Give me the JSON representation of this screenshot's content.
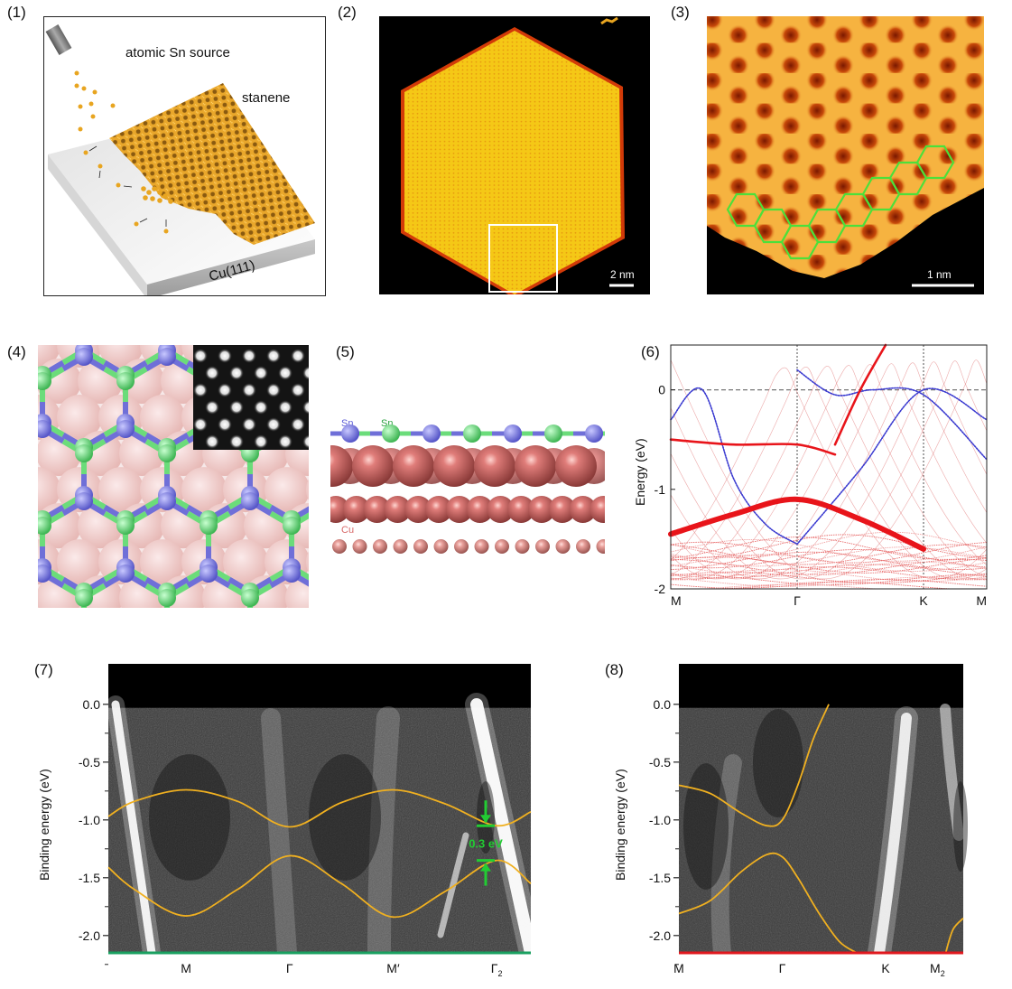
{
  "panels": {
    "p1": {
      "label": "(1)",
      "source_label": "atomic Sn source",
      "film_label": "stanene",
      "substrate_label": "Cu(111)"
    },
    "p2": {
      "label": "(2)",
      "scalebar": "2 nm"
    },
    "p3": {
      "label": "(3)",
      "scalebar": "1 nm"
    },
    "p4": {
      "label": "(4)"
    },
    "p5": {
      "label": "(5)",
      "atom_labels": [
        "Sn",
        "Sn",
        "Cu"
      ]
    }
  },
  "colors": {
    "sn_blue": "#6f6fd8",
    "sn_green": "#6bdc7a",
    "cu_pink": "#e8a9a6",
    "cu_red": "#d86a6a",
    "band_red": "#e8141a",
    "band_blue": "#3a3ad0",
    "fit_orange": "#f0b020",
    "gap_green": "#22cc33",
    "path7_green": "#1aa060",
    "path8_red": "#e0181e"
  },
  "chart_data": [
    {
      "id": "panel6",
      "label": "(6)",
      "type": "line",
      "title": "",
      "xlabel": "",
      "ylabel": "Energy (eV)",
      "ylim": [
        -2,
        0.45
      ],
      "yticks": [
        0,
        -1,
        -2
      ],
      "ytick_labels": [
        "0",
        "-1",
        "-2"
      ],
      "xticks": [
        "M",
        "Γ",
        "K",
        "M"
      ],
      "x_positions": [
        0,
        1,
        2,
        2.5
      ],
      "fermi_level": 0,
      "series": [
        {
          "name": "Sn-blue band A",
          "color": "blue",
          "x": [
            0,
            0.25,
            0.5,
            0.75,
            1.0
          ],
          "y": [
            -0.3,
            0.0,
            -0.9,
            -1.35,
            -1.55
          ]
        },
        {
          "name": "Sn-blue band B",
          "color": "blue",
          "x": [
            1.0,
            1.3,
            1.6,
            2.0,
            2.5
          ],
          "y": [
            0.2,
            -0.05,
            0.0,
            -0.05,
            -0.7
          ]
        },
        {
          "name": "Sn-blue band C",
          "color": "blue",
          "x": [
            1.0,
            1.5,
            2.0,
            2.5
          ],
          "y": [
            -1.55,
            -0.8,
            0.0,
            -0.3
          ]
        },
        {
          "name": "Cu-red flat band",
          "color": "red",
          "x": [
            0,
            0.5,
            1.0,
            1.5,
            2.0
          ],
          "y": [
            -1.45,
            -1.25,
            -1.1,
            -1.3,
            -1.6
          ]
        },
        {
          "name": "Cu-red band upper",
          "color": "red",
          "x": [
            0,
            0.5,
            1.0,
            1.3
          ],
          "y": [
            -0.5,
            -0.55,
            -0.55,
            -0.65
          ]
        },
        {
          "name": "Cu-red steep band",
          "color": "red",
          "x": [
            1.3,
            1.5,
            1.7
          ],
          "y": [
            -0.55,
            0.0,
            0.45
          ]
        }
      ]
    },
    {
      "id": "panel7",
      "label": "(7)",
      "type": "line",
      "title": "",
      "ylabel": "Binding energy (eV)",
      "ylim": [
        -2.15,
        0.35
      ],
      "yticks": [
        0.0,
        -0.5,
        -1.0,
        -1.5,
        -2.0
      ],
      "ytick_labels": [
        "0.0",
        "-0.5",
        "-1.0",
        "-1.5",
        "-2.0"
      ],
      "xticks": [
        "M",
        "Γ",
        "M′",
        "Γ2"
      ],
      "x_positions": [
        1,
        2,
        3,
        4
      ],
      "xlim": [
        0.25,
        4.33
      ],
      "annotation": "0.3 eV",
      "gap_ev": 0.3,
      "series": [
        {
          "name": "upper band fit",
          "x": [
            0.25,
            0.5,
            1.0,
            1.5,
            2.0,
            2.5,
            3.0,
            3.5,
            4.0,
            4.33
          ],
          "y": [
            -0.97,
            -0.84,
            -0.74,
            -0.84,
            -1.06,
            -0.85,
            -0.74,
            -0.86,
            -1.05,
            -0.93
          ]
        },
        {
          "name": "lower band fit",
          "x": [
            0.25,
            0.5,
            1.0,
            1.5,
            2.0,
            2.5,
            3.0,
            3.5,
            4.0,
            4.33
          ],
          "y": [
            -1.41,
            -1.6,
            -1.83,
            -1.6,
            -1.31,
            -1.55,
            -1.84,
            -1.62,
            -1.35,
            -1.55
          ]
        }
      ]
    },
    {
      "id": "panel8",
      "label": "(8)",
      "type": "line",
      "title": "",
      "ylabel": "Binding energy (eV)",
      "ylim": [
        -2.15,
        0.35
      ],
      "yticks": [
        0.0,
        -0.5,
        -1.0,
        -1.5,
        -2.0
      ],
      "ytick_labels": [
        "0.0",
        "-0.5",
        "-1.0",
        "-1.5",
        "-2.0"
      ],
      "xticks": [
        "M",
        "Γ",
        "K",
        "M2"
      ],
      "x_positions": [
        0,
        1,
        2,
        2.5
      ],
      "xlim": [
        0,
        2.75
      ],
      "series": [
        {
          "name": "upper band fit",
          "x": [
            0,
            0.3,
            0.6,
            0.85,
            1.0,
            1.15,
            1.3,
            1.45
          ],
          "y": [
            -0.7,
            -0.77,
            -0.94,
            -1.05,
            -1.0,
            -0.7,
            -0.3,
            0.0
          ]
        },
        {
          "name": "lower band fit",
          "x": [
            0,
            0.3,
            0.6,
            0.85,
            1.0,
            1.15,
            1.35,
            1.55,
            1.72
          ],
          "y": [
            -1.81,
            -1.7,
            -1.45,
            -1.3,
            -1.32,
            -1.5,
            -1.8,
            -2.05,
            -2.15
          ]
        },
        {
          "name": "M2 band fit",
          "x": [
            2.58,
            2.65,
            2.75
          ],
          "y": [
            -2.15,
            -1.95,
            -1.85
          ]
        }
      ]
    }
  ]
}
